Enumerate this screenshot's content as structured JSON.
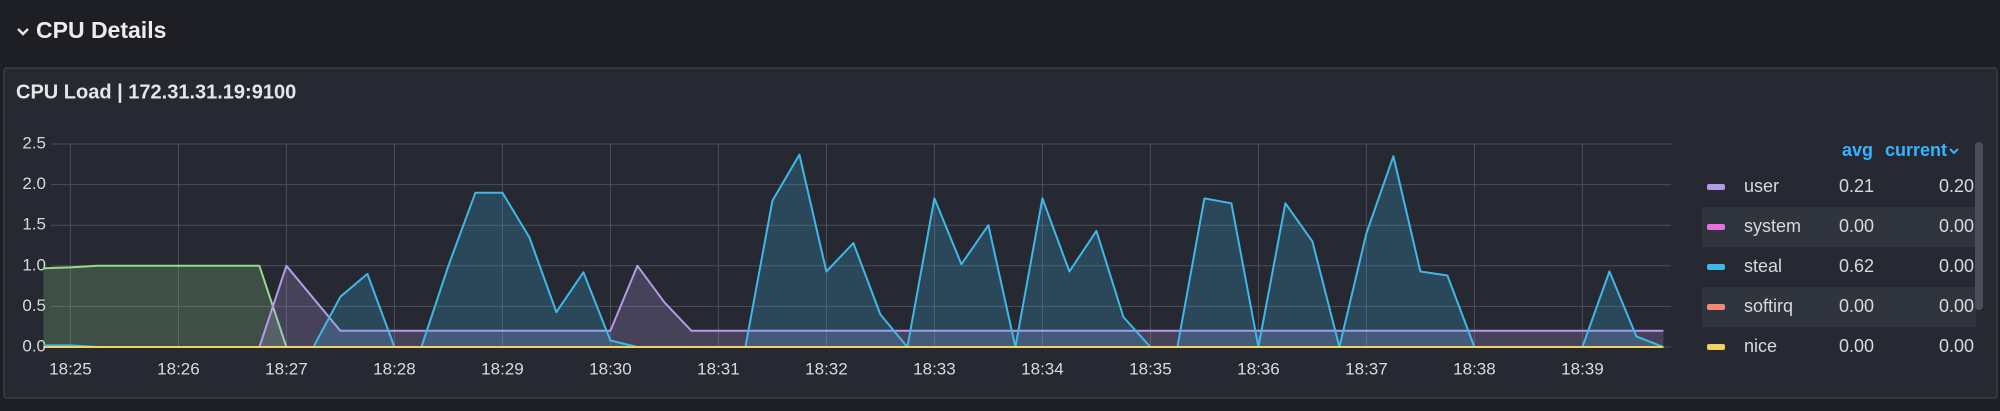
{
  "header": {
    "title": "CPU Details"
  },
  "chart_data": {
    "type": "line",
    "title": "CPU Load | 172.31.31.19:9100",
    "x": [
      24.75,
      25,
      25.25,
      25.5,
      25.75,
      26,
      26.25,
      26.5,
      26.75,
      27,
      27.25,
      27.5,
      27.75,
      28,
      28.25,
      28.5,
      28.75,
      29,
      29.25,
      29.5,
      29.75,
      30,
      30.25,
      30.5,
      30.75,
      31,
      31.25,
      31.5,
      31.75,
      32,
      32.25,
      32.5,
      32.75,
      33,
      33.25,
      33.5,
      33.75,
      34,
      34.25,
      34.5,
      34.75,
      35,
      35.25,
      35.5,
      35.75,
      36,
      36.25,
      36.5,
      36.75,
      37,
      37.25,
      37.5,
      37.75,
      38,
      38.25,
      38.5,
      38.75,
      39,
      39.25,
      39.5,
      39.75
    ],
    "xlim": [
      24.82,
      39.82
    ],
    "xticks": [
      {
        "value": 25,
        "label": "18:25"
      },
      {
        "value": 26,
        "label": "18:26"
      },
      {
        "value": 27,
        "label": "18:27"
      },
      {
        "value": 28,
        "label": "18:28"
      },
      {
        "value": 29,
        "label": "18:29"
      },
      {
        "value": 30,
        "label": "18:30"
      },
      {
        "value": 31,
        "label": "18:31"
      },
      {
        "value": 32,
        "label": "18:32"
      },
      {
        "value": 33,
        "label": "18:33"
      },
      {
        "value": 34,
        "label": "18:34"
      },
      {
        "value": 35,
        "label": "18:35"
      },
      {
        "value": 36,
        "label": "18:36"
      },
      {
        "value": 37,
        "label": "18:37"
      },
      {
        "value": 38,
        "label": "18:38"
      },
      {
        "value": 39,
        "label": "18:39"
      }
    ],
    "ylim": [
      0,
      2.5
    ],
    "yticks": [
      {
        "value": 0,
        "label": "0.0"
      },
      0.5,
      {
        "value": 1,
        "label": "1.0"
      },
      1.5,
      {
        "value": 2,
        "label": "2.0"
      },
      2.5
    ],
    "grid": true,
    "legend_columns": [
      "avg",
      "current"
    ],
    "series": [
      {
        "name": "user",
        "color": "#b59ae8",
        "avg": "0.21",
        "current": "0.20",
        "values": [
          0,
          0,
          0,
          0,
          0,
          0,
          0,
          0,
          0,
          1.0,
          0.6,
          0.2,
          0.2,
          0.2,
          0.2,
          0.2,
          0.2,
          0.2,
          0.2,
          0.2,
          0.2,
          0.2,
          1.0,
          0.55,
          0.2,
          0.2,
          0.2,
          0.2,
          0.2,
          0.2,
          0.2,
          0.2,
          0.2,
          0.2,
          0.2,
          0.2,
          0.2,
          0.2,
          0.2,
          0.2,
          0.2,
          0.2,
          0.2,
          0.2,
          0.2,
          0.2,
          0.2,
          0.2,
          0.2,
          0.2,
          0.2,
          0.2,
          0.2,
          0.2,
          0.2,
          0.2,
          0.2,
          0.2,
          0.2,
          0.2,
          0.2
        ]
      },
      {
        "name": "system",
        "color": "#e86fe0",
        "avg": "0.00",
        "current": "0.00",
        "values": [
          0,
          0,
          0,
          0,
          0,
          0,
          0,
          0,
          0,
          0,
          0,
          0,
          0,
          0,
          0,
          0,
          0,
          0,
          0,
          0,
          0,
          0,
          0,
          0,
          0,
          0,
          0,
          0,
          0,
          0,
          0,
          0,
          0,
          0,
          0,
          0,
          0,
          0,
          0,
          0,
          0,
          0,
          0,
          0,
          0,
          0,
          0,
          0,
          0,
          0,
          0,
          0,
          0,
          0,
          0,
          0,
          0,
          0,
          0,
          0,
          0
        ]
      },
      {
        "name": "steal",
        "color": "#3fb8e8",
        "avg": "0.62",
        "current": "0.00",
        "values": [
          0.02,
          0.02,
          0,
          0,
          0,
          0,
          0,
          0,
          0,
          0,
          0,
          0.62,
          0.9,
          0,
          0,
          1.0,
          1.9,
          1.9,
          1.35,
          0.43,
          0.92,
          0.08,
          0,
          0,
          0,
          0,
          0,
          1.8,
          2.37,
          0.93,
          1.28,
          0.4,
          0,
          1.83,
          1.02,
          1.5,
          0,
          1.83,
          0.93,
          1.43,
          0.37,
          0,
          0,
          1.83,
          1.77,
          0,
          1.77,
          1.3,
          0,
          1.4,
          2.35,
          0.93,
          0.88,
          0,
          0,
          0,
          0,
          0,
          0.93,
          0.13,
          0
        ]
      },
      {
        "name": "softirq",
        "color": "#f08a74",
        "avg": "0.00",
        "current": "0.00",
        "values": [
          0,
          0,
          0,
          0,
          0,
          0,
          0,
          0,
          0,
          0,
          0,
          0,
          0,
          0,
          0,
          0,
          0,
          0,
          0,
          0,
          0,
          0,
          0,
          0,
          0,
          0,
          0,
          0,
          0,
          0,
          0,
          0,
          0,
          0,
          0,
          0,
          0,
          0,
          0,
          0,
          0,
          0,
          0,
          0,
          0,
          0,
          0,
          0,
          0,
          0,
          0,
          0,
          0,
          0,
          0,
          0,
          0,
          0,
          0,
          0,
          0
        ]
      },
      {
        "name": "nice",
        "color": "#f2d45c",
        "avg": "0.00",
        "current": "0.00",
        "values": [
          0,
          0,
          0,
          0,
          0,
          0,
          0,
          0,
          0,
          0,
          0,
          0,
          0,
          0,
          0,
          0,
          0,
          0,
          0,
          0,
          0,
          0,
          0,
          0,
          0,
          0,
          0,
          0,
          0,
          0,
          0,
          0,
          0,
          0,
          0,
          0,
          0,
          0,
          0,
          0,
          0,
          0,
          0,
          0,
          0,
          0,
          0,
          0,
          0,
          0,
          0,
          0,
          0,
          0,
          0,
          0,
          0,
          0,
          0,
          0,
          0
        ]
      },
      {
        "color": "#96d98d",
        "values": [
          0.97,
          0.98,
          1.0,
          1.0,
          1.0,
          1.0,
          1.0,
          1.0,
          1.0,
          0,
          null,
          null,
          null,
          null,
          null,
          null,
          null,
          null,
          null,
          null,
          null,
          null,
          null,
          null,
          null,
          null,
          null,
          null,
          null,
          null,
          null,
          null,
          null,
          null,
          null,
          null,
          null,
          null,
          null,
          null,
          null,
          null,
          null,
          null,
          null,
          null,
          null,
          null,
          null,
          null,
          null,
          null,
          null,
          null,
          null,
          null,
          null,
          null,
          null,
          null,
          null
        ]
      }
    ]
  }
}
